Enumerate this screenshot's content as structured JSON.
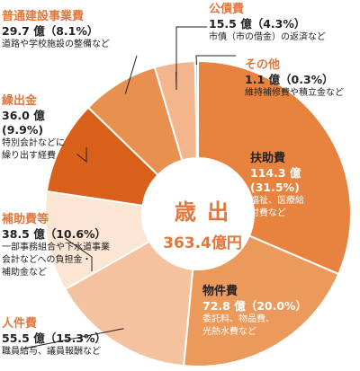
{
  "center": {
    "title": "歳 出",
    "total": "363.4億円"
  },
  "chart_data": {
    "type": "pie",
    "donut": true,
    "unit": "億",
    "slices": [
      {
        "name": "扶助費",
        "value": 114.3,
        "percent": 31.5,
        "color": "#e8833f",
        "amount_label": "114.3 億",
        "percent_label": "(31.5%)",
        "description": "福祉、医療給付費など"
      },
      {
        "name": "物件費",
        "value": 72.8,
        "percent": 20.0,
        "color": "#eb9a5c",
        "amount_label": "72.8 億（20.0%）",
        "description_lines": [
          "委託料、物品費、",
          "光熱水費など"
        ]
      },
      {
        "name": "人件費",
        "value": 55.5,
        "percent": 15.3,
        "color": "#f5c29f",
        "amount_label": "55.5 億（15.3%）",
        "description": "職員給与、議員報酬など"
      },
      {
        "name": "補助費等",
        "value": 38.5,
        "percent": 10.6,
        "color": "#fbe5d3",
        "amount_label": "38.5 億（10.6%）",
        "description_lines": [
          "一部事務組合や下水道事業",
          "会計などへの負担金・",
          "補助金など"
        ]
      },
      {
        "name": "繰出金",
        "value": 36.0,
        "percent": 9.9,
        "color": "#d9601b",
        "amount_label": "36.0 億",
        "percent_label": "(9.9%)",
        "description_lines": [
          "特別会計などに",
          "繰り出す経費"
        ]
      },
      {
        "name": "普通建設事業費",
        "value": 29.7,
        "percent": 8.1,
        "color": "#e8904f",
        "amount_label": "29.7 億（8.1%）",
        "description": "道路や学校施設の整備など"
      },
      {
        "name": "公債費",
        "value": 15.5,
        "percent": 4.3,
        "color": "#f3b58c",
        "amount_label": "15.5 億（4.3%）",
        "description": "市債（市の借金）の返済など"
      },
      {
        "name": "その他",
        "value": 1.1,
        "percent": 0.3,
        "color": "#cfcfcf",
        "amount_label": "1.1 億（0.3%）",
        "description": "維持補修費や積立金など"
      }
    ]
  }
}
